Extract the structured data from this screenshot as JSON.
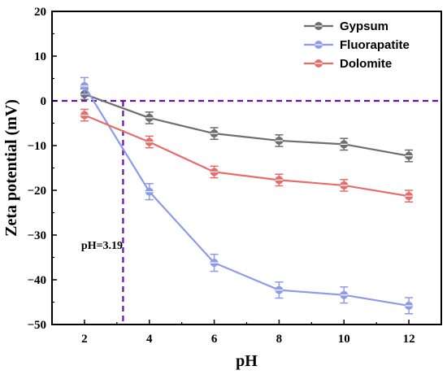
{
  "chart_data": {
    "type": "line",
    "title": "",
    "xlabel": "pH",
    "ylabel": "Zeta potential (mV)",
    "x": [
      2,
      4,
      6,
      8,
      10,
      12
    ],
    "xlim": [
      1,
      13
    ],
    "ylim": [
      -50,
      20
    ],
    "x_ticks": [
      "2",
      "4",
      "6",
      "8",
      "10",
      "12"
    ],
    "y_ticks": [
      "-50",
      "-40",
      "-30",
      "-20",
      "-10",
      "0",
      "10",
      "20"
    ],
    "grid": false,
    "legend_position": "top-right",
    "series": [
      {
        "name": "Gypsum",
        "color": "#6e6e6e",
        "values": [
          1.5,
          -3.8,
          -7.3,
          -8.9,
          -9.7,
          -12.3
        ],
        "errors": [
          1.2,
          1.3,
          1.3,
          1.3,
          1.3,
          1.3
        ]
      },
      {
        "name": "Fluorapatite",
        "color": "#8d9be8",
        "values": [
          3.3,
          -20.3,
          -36.2,
          -42.3,
          -43.4,
          -45.8
        ],
        "errors": [
          1.9,
          1.8,
          1.9,
          1.8,
          1.8,
          1.8
        ]
      },
      {
        "name": "Dolomite",
        "color": "#e86c6c",
        "values": [
          -3.2,
          -9.2,
          -15.9,
          -17.7,
          -18.9,
          -21.3
        ],
        "errors": [
          1.3,
          1.3,
          1.3,
          1.3,
          1.3,
          1.3
        ]
      }
    ],
    "reference_lines": {
      "color": "#6a0dad",
      "horizontal_y": 0,
      "vertical_x": 3.19
    },
    "annotations": [
      {
        "text": "pH=3.19",
        "x": 2.1,
        "y": -32
      }
    ]
  }
}
